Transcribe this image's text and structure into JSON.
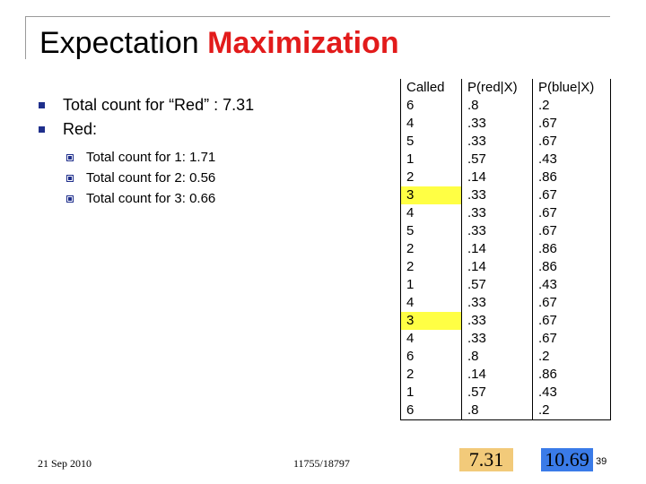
{
  "title": {
    "plain": "Expectation ",
    "emphasis": "Maximization"
  },
  "bullets": [
    {
      "text": "Total count for “Red” : 7.31"
    },
    {
      "text": "Red:"
    }
  ],
  "sub_bullets": [
    {
      "text": "Total count for 1:  1.71"
    },
    {
      "text": "Total count for 2:  0.56"
    },
    {
      "text": "Total count for 3:  0.66"
    }
  ],
  "table": {
    "headers": [
      "Called",
      "P(red|X)",
      "P(blue|X)"
    ],
    "rows": [
      [
        "6",
        ".8",
        ".2"
      ],
      [
        "4",
        ".33",
        ".67"
      ],
      [
        "5",
        ".33",
        ".67"
      ],
      [
        "1",
        ".57",
        ".43"
      ],
      [
        "2",
        ".14",
        ".86"
      ],
      [
        "3",
        ".33",
        ".67"
      ],
      [
        "4",
        ".33",
        ".67"
      ],
      [
        "5",
        ".33",
        ".67"
      ],
      [
        "2",
        ".14",
        ".86"
      ],
      [
        "2",
        ".14",
        ".86"
      ],
      [
        "1",
        ".57",
        ".43"
      ],
      [
        "4",
        ".33",
        ".67"
      ],
      [
        "3",
        ".33",
        ".67"
      ],
      [
        "4",
        ".33",
        ".67"
      ],
      [
        "6",
        ".8",
        ".2"
      ],
      [
        "2",
        ".14",
        ".86"
      ],
      [
        "1",
        ".57",
        ".43"
      ],
      [
        "6",
        ".8",
        ".2"
      ]
    ],
    "highlighted_rows": [
      5,
      12
    ],
    "highlight_color": "#ffff44"
  },
  "totals": {
    "red": "7.31",
    "blue": "10.69"
  },
  "colors": {
    "title_emphasis": "#e21b1b",
    "bullet": "#1f2f8c",
    "red_total_bg": "#f2ca7a",
    "blue_total_bg": "#3a7be8"
  },
  "footer": {
    "date": "21 Sep 2010",
    "course": "11755/18797",
    "page": "39"
  }
}
